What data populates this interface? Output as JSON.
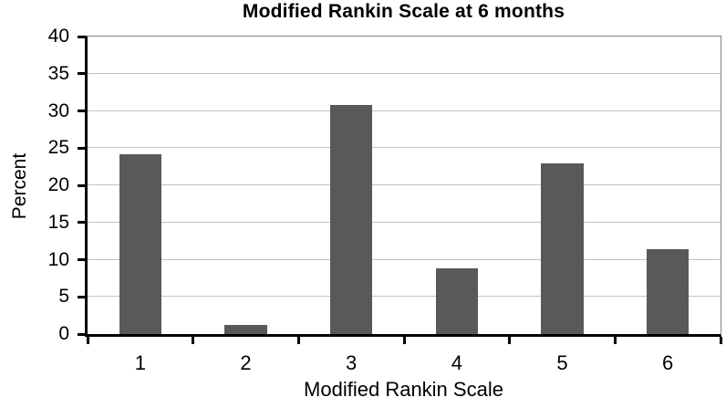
{
  "chart_data": {
    "type": "bar",
    "title": "Modified Rankin Scale at 6 months",
    "xlabel": "Modified Rankin Scale",
    "ylabel": "Percent",
    "categories": [
      "1",
      "2",
      "3",
      "4",
      "5",
      "6"
    ],
    "values": [
      24.2,
      1.2,
      30.8,
      8.8,
      23.0,
      11.4
    ],
    "ylim": [
      0,
      40
    ],
    "ytick_step": 5,
    "yticks": [
      0,
      5,
      10,
      15,
      20,
      25,
      30,
      35,
      40
    ],
    "grid": "horizontal-major",
    "legend": "none",
    "bar_gap_fraction": 0.6,
    "colors": {
      "bar": "#595959",
      "gridline": "#c3c3c3",
      "axis": "#000000",
      "frame": "#808080",
      "background": "#ffffff",
      "text": "#000000"
    }
  }
}
